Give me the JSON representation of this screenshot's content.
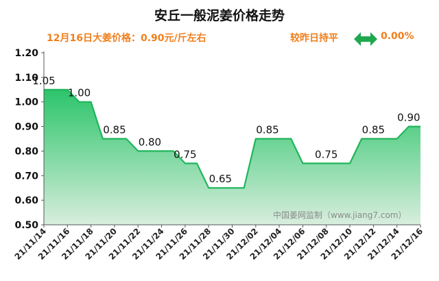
{
  "title": "安丘一般泥姜价格走势",
  "price_text": "12月16日大姜价格：0.90元/斤左右",
  "compare_text": "较昨日持平",
  "change_text": "0.00%",
  "change_icon": "double-arrow-icon",
  "watermark": "中国姜网监制（www.jiang7.com）",
  "colors": {
    "accent": "#f07f1d",
    "line": "#1fb55a",
    "fill_top": "#2bc46a",
    "fill_bottom": "#d8eedd",
    "icon": "#1ea84e"
  },
  "chart_data": {
    "type": "area",
    "title": "安丘一般泥姜价格走势",
    "xlabel": "",
    "ylabel": "",
    "ylim": [
      0.5,
      1.2
    ],
    "yticks": [
      "0.50",
      "0.60",
      "0.70",
      "0.80",
      "0.90",
      "1.00",
      "1.10",
      "1.20"
    ],
    "ytick_values": [
      0.5,
      0.6,
      0.7,
      0.8,
      0.9,
      1.0,
      1.1,
      1.2
    ],
    "xtick_labels": [
      "21/11/14",
      "21/11/16",
      "21/11/18",
      "21/11/20",
      "21/11/22",
      "21/11/24",
      "21/11/26",
      "21/11/28",
      "21/11/30",
      "21/12/02",
      "21/12/04",
      "21/12/06",
      "21/12/08",
      "21/12/10",
      "21/12/12",
      "21/12/14",
      "21/12/16"
    ],
    "x": [
      "21/11/14",
      "21/11/15",
      "21/11/16",
      "21/11/17",
      "21/11/18",
      "21/11/19",
      "21/11/20",
      "21/11/21",
      "21/11/22",
      "21/11/23",
      "21/11/24",
      "21/11/25",
      "21/11/26",
      "21/11/27",
      "21/11/28",
      "21/11/29",
      "21/11/30",
      "21/12/01",
      "21/12/02",
      "21/12/03",
      "21/12/04",
      "21/12/05",
      "21/12/06",
      "21/12/07",
      "21/12/08",
      "21/12/09",
      "21/12/10",
      "21/12/11",
      "21/12/12",
      "21/12/13",
      "21/12/14",
      "21/12/15",
      "21/12/16"
    ],
    "values": [
      1.05,
      1.05,
      1.05,
      1.0,
      1.0,
      0.85,
      0.85,
      0.85,
      0.8,
      0.8,
      0.8,
      0.8,
      0.75,
      0.75,
      0.65,
      0.65,
      0.65,
      0.65,
      0.85,
      0.85,
      0.85,
      0.85,
      0.75,
      0.75,
      0.75,
      0.75,
      0.75,
      0.85,
      0.85,
      0.85,
      0.85,
      0.9,
      0.9
    ],
    "data_labels": [
      {
        "x": "21/11/14",
        "text": "1.05"
      },
      {
        "x": "21/11/17",
        "text": "1.00"
      },
      {
        "x": "21/11/20",
        "text": "0.85"
      },
      {
        "x": "21/11/23",
        "text": "0.80"
      },
      {
        "x": "21/11/26",
        "text": "0.75"
      },
      {
        "x": "21/11/29",
        "text": "0.65"
      },
      {
        "x": "21/12/03",
        "text": "0.85"
      },
      {
        "x": "21/12/08",
        "text": "0.75"
      },
      {
        "x": "21/12/12",
        "text": "0.85"
      },
      {
        "x": "21/12/15",
        "text": "0.90"
      }
    ],
    "grid": false,
    "legend": "none"
  }
}
